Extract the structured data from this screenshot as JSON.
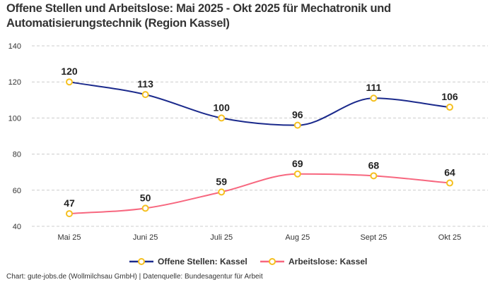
{
  "chart_data": {
    "type": "line",
    "title": "Offene Stellen und Arbeitslose: Mai 2025 - Okt 2025 für Mechatronik und Automatisierungstechnik (Region Kassel)",
    "categories": [
      "Mai 25",
      "Juni 25",
      "Juli 25",
      "Aug 25",
      "Sept 25",
      "Okt 25"
    ],
    "series": [
      {
        "name": "Offene Stellen: Kassel",
        "values": [
          120,
          113,
          100,
          96,
          111,
          106
        ],
        "color": "#1b2a8c"
      },
      {
        "name": "Arbeitslose: Kassel",
        "values": [
          47,
          50,
          59,
          69,
          68,
          64
        ],
        "color": "#f7677f"
      }
    ],
    "marker_color": "#f5c020",
    "ylim": [
      40,
      140
    ],
    "yticks": [
      40,
      60,
      80,
      100,
      120,
      140
    ],
    "grid": true,
    "legend": "bottom",
    "xlabel": "",
    "ylabel": ""
  },
  "footer": "Chart: gute-jobs.de (Wollmilchsau GmbH) | Datenquelle: Bundesagentur für Arbeit"
}
